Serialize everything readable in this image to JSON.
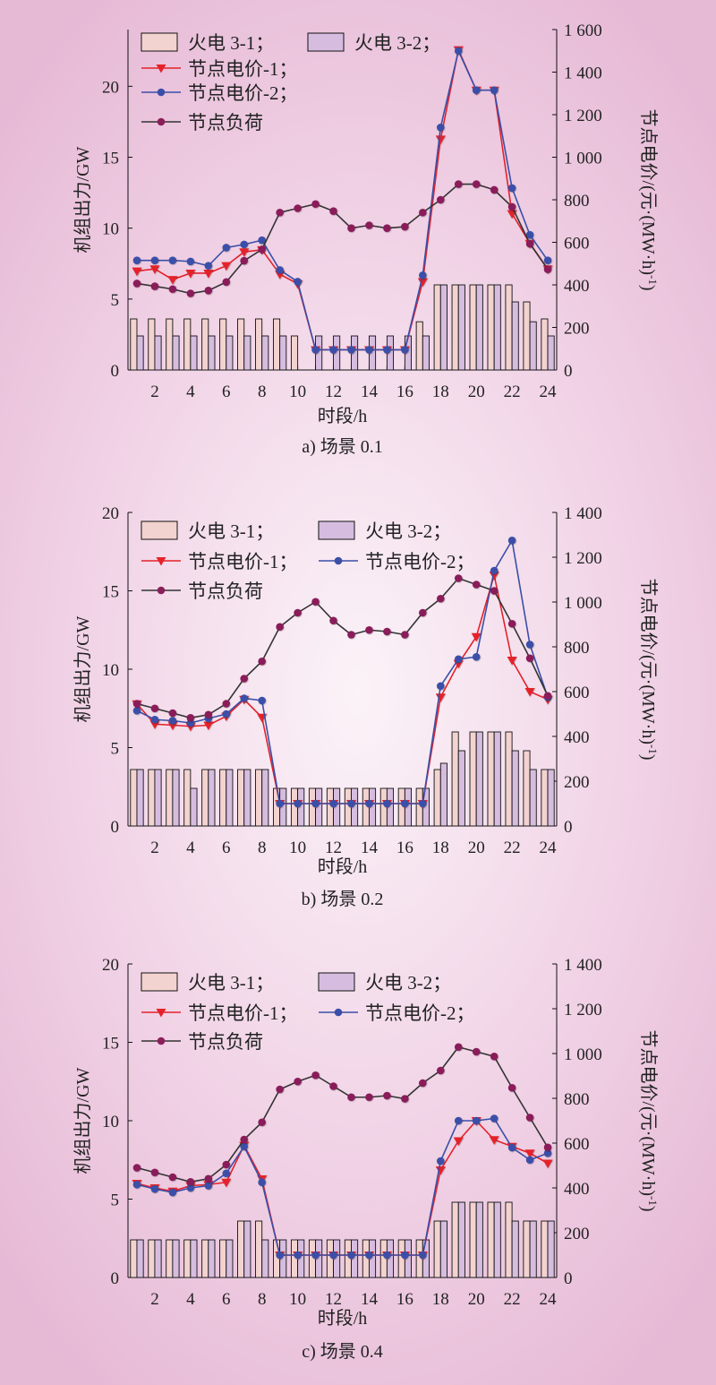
{
  "chart_data": [
    {
      "type": "bar",
      "caption": "a) 场景 0.1",
      "xlabel": "时段/h",
      "ylabel_left": "机组出力/GW",
      "ylabel_right": "节点电价/(元·(MW·h)",
      "ylabel_right_sup": "-1",
      "ylabel_right_end": ")",
      "x": [
        1,
        2,
        3,
        4,
        5,
        6,
        7,
        8,
        9,
        10,
        11,
        12,
        13,
        14,
        15,
        16,
        17,
        18,
        19,
        20,
        21,
        22,
        23,
        24
      ],
      "x_ticks": [
        2,
        4,
        6,
        8,
        10,
        12,
        14,
        16,
        18,
        20,
        22,
        24
      ],
      "ylim_left": [
        0,
        24
      ],
      "yticks_left": [
        0,
        5,
        10,
        15,
        20
      ],
      "ylim_right": [
        0,
        1600
      ],
      "yticks_right": [
        0,
        200,
        400,
        600,
        800,
        1000,
        1200,
        1400,
        1600
      ],
      "ytick_labels_right": [
        "0",
        "200",
        "400",
        "600",
        "800",
        "1 000",
        "1 200",
        "1 400",
        "1 600"
      ],
      "legend_layout": [
        [
          0,
          1
        ],
        [
          2
        ],
        [
          3
        ],
        [
          4
        ]
      ],
      "series": [
        {
          "name": "火电 3-1；",
          "kind": "bar",
          "axis": "left",
          "color": "#f3d3cf",
          "values": [
            3.6,
            3.6,
            3.6,
            3.6,
            3.6,
            3.6,
            3.6,
            3.6,
            3.6,
            2.4,
            0,
            0,
            0,
            0,
            0,
            0,
            3.4,
            6.0,
            6.0,
            6.0,
            6.0,
            6.0,
            4.8,
            3.6
          ]
        },
        {
          "name": "火电 3-2；",
          "kind": "bar",
          "axis": "left",
          "color": "#d6bde0",
          "values": [
            2.4,
            2.4,
            2.4,
            2.4,
            2.4,
            2.4,
            2.4,
            2.4,
            2.4,
            0,
            2.4,
            2.4,
            2.4,
            2.4,
            2.4,
            2.4,
            2.4,
            6.0,
            6.0,
            6.0,
            6.0,
            4.8,
            3.4,
            2.4
          ]
        },
        {
          "name": "节点电价-1；",
          "kind": "line",
          "axis": "right",
          "color": "#e5212a",
          "marker": "triangle",
          "values": [
            465,
            475,
            425,
            455,
            455,
            490,
            555,
            565,
            450,
            405,
            95,
            95,
            95,
            95,
            95,
            95,
            415,
            1085,
            1505,
            1315,
            1315,
            735,
            595,
            475
          ]
        },
        {
          "name": "节点电价-2；",
          "kind": "line",
          "axis": "right",
          "color": "#3a4fa8",
          "marker": "circle",
          "values": [
            515,
            515,
            515,
            510,
            490,
            575,
            590,
            610,
            470,
            415,
            95,
            95,
            95,
            95,
            95,
            95,
            445,
            1140,
            1500,
            1315,
            1315,
            855,
            635,
            515
          ]
        },
        {
          "name": "节点负荷",
          "kind": "line",
          "axis": "left",
          "color": "#8a1f5a",
          "marker": "circle",
          "values": [
            6.1,
            5.9,
            5.7,
            5.4,
            5.6,
            6.2,
            7.7,
            8.5,
            11.1,
            11.4,
            11.7,
            11.2,
            10.0,
            10.2,
            10.0,
            10.1,
            11.1,
            12.0,
            13.1,
            13.1,
            12.7,
            11.5,
            8.9,
            7.1
          ]
        }
      ]
    },
    {
      "type": "bar",
      "caption": "b) 场景 0.2",
      "xlabel": "时段/h",
      "ylabel_left": "机组出力/GW",
      "ylabel_right": "节点电价/(元·(MW·h)",
      "ylabel_right_sup": "-1",
      "ylabel_right_end": ")",
      "x": [
        1,
        2,
        3,
        4,
        5,
        6,
        7,
        8,
        9,
        10,
        11,
        12,
        13,
        14,
        15,
        16,
        17,
        18,
        19,
        20,
        21,
        22,
        23,
        24
      ],
      "x_ticks": [
        2,
        4,
        6,
        8,
        10,
        12,
        14,
        16,
        18,
        20,
        22,
        24
      ],
      "ylim_left": [
        0,
        20
      ],
      "yticks_left": [
        0,
        5,
        10,
        15,
        20
      ],
      "ylim_right": [
        0,
        1400
      ],
      "yticks_right": [
        0,
        200,
        400,
        600,
        800,
        1000,
        1200,
        1400
      ],
      "ytick_labels_right": [
        "0",
        "200",
        "400",
        "600",
        "800",
        "1 000",
        "1 200",
        "1 400"
      ],
      "legend_layout": [
        [
          0,
          1
        ],
        [
          2,
          3
        ],
        [
          4
        ]
      ],
      "series": [
        {
          "name": "火电 3-1；",
          "kind": "bar",
          "axis": "left",
          "color": "#f3d3cf",
          "values": [
            3.6,
            3.6,
            3.6,
            3.6,
            3.6,
            3.6,
            3.6,
            3.6,
            2.4,
            2.4,
            2.4,
            2.4,
            2.4,
            2.4,
            2.4,
            2.4,
            2.4,
            3.6,
            6.0,
            6.0,
            6.0,
            6.0,
            4.8,
            3.6
          ]
        },
        {
          "name": "火电 3-2；",
          "kind": "bar",
          "axis": "left",
          "color": "#d6bde0",
          "values": [
            3.6,
            3.6,
            3.6,
            2.4,
            3.6,
            3.6,
            3.6,
            3.6,
            2.4,
            2.4,
            2.4,
            2.4,
            2.4,
            2.4,
            2.4,
            2.4,
            2.4,
            4.0,
            4.8,
            6.0,
            6.0,
            4.8,
            3.6,
            3.6
          ]
        },
        {
          "name": "节点电价-1；",
          "kind": "line",
          "axis": "right",
          "color": "#e5212a",
          "marker": "triangle",
          "values": [
            545,
            455,
            450,
            445,
            450,
            490,
            565,
            485,
            100,
            100,
            100,
            100,
            100,
            100,
            100,
            100,
            100,
            575,
            725,
            845,
            1120,
            740,
            600,
            565
          ]
        },
        {
          "name": "节点电价-2；",
          "kind": "line",
          "axis": "right",
          "color": "#3a4fa8",
          "marker": "circle",
          "values": [
            515,
            475,
            470,
            460,
            480,
            500,
            570,
            560,
            100,
            100,
            100,
            100,
            100,
            100,
            100,
            100,
            100,
            625,
            745,
            755,
            1140,
            1275,
            810,
            575
          ]
        },
        {
          "name": "节点负荷",
          "kind": "line",
          "axis": "left",
          "color": "#8a1f5a",
          "marker": "circle",
          "values": [
            7.8,
            7.5,
            7.2,
            6.9,
            7.1,
            7.8,
            9.4,
            10.5,
            12.7,
            13.6,
            14.3,
            13.1,
            12.2,
            12.5,
            12.4,
            12.2,
            13.6,
            14.5,
            15.8,
            15.4,
            15.0,
            12.9,
            10.7,
            8.3
          ]
        }
      ]
    },
    {
      "type": "bar",
      "caption": "c) 场景 0.4",
      "xlabel": "时段/h",
      "ylabel_left": "机组出力/GW",
      "ylabel_right": "节点电价/(元·(MW·h)",
      "ylabel_right_sup": "-1",
      "ylabel_right_end": ")",
      "x": [
        1,
        2,
        3,
        4,
        5,
        6,
        7,
        8,
        9,
        10,
        11,
        12,
        13,
        14,
        15,
        16,
        17,
        18,
        19,
        20,
        21,
        22,
        23,
        24
      ],
      "x_ticks": [
        2,
        4,
        6,
        8,
        10,
        12,
        14,
        16,
        18,
        20,
        22,
        24
      ],
      "ylim_left": [
        0,
        20
      ],
      "yticks_left": [
        0,
        5,
        10,
        15,
        20
      ],
      "ylim_right": [
        0,
        1400
      ],
      "yticks_right": [
        0,
        200,
        400,
        600,
        800,
        1000,
        1200,
        1400
      ],
      "ytick_labels_right": [
        "0",
        "200",
        "400",
        "600",
        "800",
        "1 000",
        "1 200",
        "1 400"
      ],
      "legend_layout": [
        [
          0,
          1
        ],
        [
          2,
          3
        ],
        [
          4
        ]
      ],
      "series": [
        {
          "name": "火电 3-1；",
          "kind": "bar",
          "axis": "left",
          "color": "#f3d3cf",
          "values": [
            2.4,
            2.4,
            2.4,
            2.4,
            2.4,
            2.4,
            3.6,
            3.6,
            2.4,
            2.4,
            2.4,
            2.4,
            2.4,
            2.4,
            2.4,
            2.4,
            2.4,
            3.6,
            4.8,
            4.8,
            4.8,
            4.8,
            3.6,
            3.6
          ]
        },
        {
          "name": "火电 3-2；",
          "kind": "bar",
          "axis": "left",
          "color": "#d6bde0",
          "values": [
            2.4,
            2.4,
            2.4,
            2.4,
            2.4,
            2.4,
            3.6,
            2.4,
            2.4,
            2.4,
            2.4,
            2.4,
            2.4,
            2.4,
            2.4,
            2.4,
            2.4,
            3.6,
            4.8,
            4.8,
            4.8,
            3.6,
            3.6,
            3.6
          ]
        },
        {
          "name": "节点电价-1；",
          "kind": "line",
          "axis": "right",
          "color": "#e5212a",
          "marker": "triangle",
          "values": [
            420,
            400,
            385,
            410,
            415,
            425,
            590,
            440,
            100,
            100,
            100,
            100,
            100,
            100,
            100,
            100,
            100,
            480,
            610,
            700,
            615,
            585,
            555,
            510
          ]
        },
        {
          "name": "节点电价-2；",
          "kind": "line",
          "axis": "right",
          "color": "#3a4fa8",
          "marker": "circle",
          "values": [
            415,
            395,
            380,
            400,
            410,
            465,
            585,
            425,
            100,
            100,
            100,
            100,
            100,
            100,
            100,
            100,
            100,
            520,
            700,
            700,
            710,
            580,
            525,
            555
          ]
        },
        {
          "name": "节点负荷",
          "kind": "line",
          "axis": "left",
          "color": "#8a1f5a",
          "marker": "circle",
          "values": [
            7.0,
            6.7,
            6.4,
            6.1,
            6.3,
            7.2,
            8.8,
            9.9,
            12.0,
            12.5,
            12.9,
            12.2,
            11.5,
            11.5,
            11.6,
            11.4,
            12.4,
            13.2,
            14.7,
            14.4,
            14.1,
            12.1,
            10.2,
            8.3
          ]
        }
      ]
    }
  ]
}
